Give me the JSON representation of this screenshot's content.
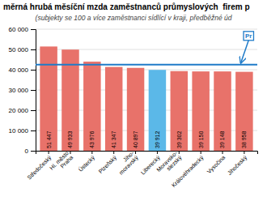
{
  "chart_data": {
    "type": "bar",
    "title": "měrná hrubá měsíční mzda zaměstnanců průmyslových  firem p",
    "subtitle": "(subjekty se 100 a více zaměstnanci sídlící v kraji, předběžné úd",
    "categories": [
      "Středočeský",
      "Hl. město\nPraha",
      "Ústecký",
      "Plzeňský",
      "Jiho-\nmoravský",
      "Liberecký",
      "Moravsko-\nslezský",
      "Královéhradecký",
      "Vysočina",
      "Jihočeský"
    ],
    "values": [
      51447,
      49933,
      43976,
      41347,
      40897,
      39912,
      39302,
      39150,
      39148,
      38958
    ],
    "value_labels": [
      "51 447",
      "49 933",
      "43 976",
      "41 347",
      "40 897",
      "39 912",
      "39 302",
      "39 150",
      "39 148",
      "38 958"
    ],
    "data_labels": true,
    "colors": [
      "#E8726A",
      "#E8726A",
      "#E8726A",
      "#E8726A",
      "#E8726A",
      "#5BB8E8",
      "#E8726A",
      "#E8726A",
      "#E8726A",
      "#E8726A"
    ],
    "reference_line": {
      "value": 42500,
      "label": "Pr",
      "color": "#1F7BC8"
    },
    "ylim": [
      0,
      60000
    ],
    "yticks": [
      0,
      {
        "value": 10000,
        "label": "10 000"
      },
      {
        "value": 20000,
        "label": "20 000"
      },
      {
        "value": 30000,
        "label": "30 000"
      },
      {
        "value": 40000,
        "label": "40 000"
      },
      {
        "value": 50000,
        "label": "50 000"
      },
      {
        "value": 60000,
        "label": "60 000"
      }
    ],
    "grid": true
  }
}
